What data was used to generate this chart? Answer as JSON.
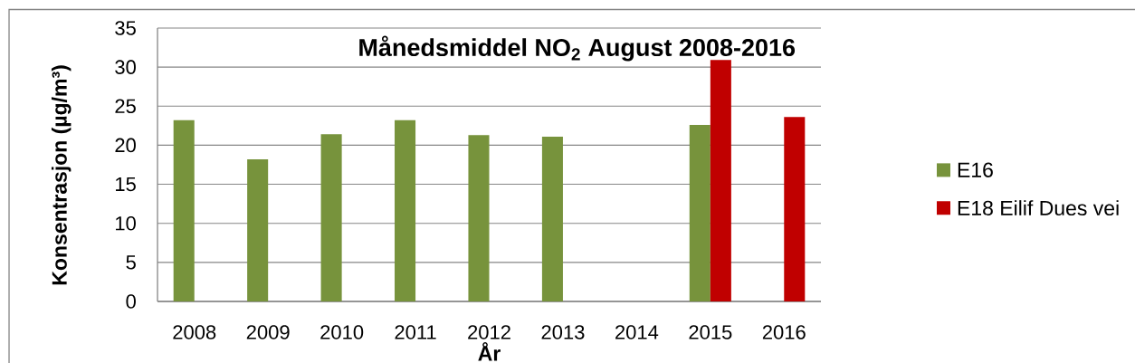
{
  "chart_data": {
    "type": "bar",
    "title": "Månedsmiddel NO$_{2}$ August 2008-2016",
    "xlabel": "År",
    "ylabel": "Konsentrasjon (µg/m³)",
    "categories": [
      "2008",
      "2009",
      "2010",
      "2011",
      "2012",
      "2013",
      "2014",
      "2015",
      "2016"
    ],
    "series": [
      {
        "name": "E16",
        "color": "#77933c",
        "values": [
          23.2,
          18.2,
          21.4,
          23.2,
          21.3,
          21.1,
          null,
          22.6,
          null
        ]
      },
      {
        "name": "E18 Eilif Dues vei",
        "color": "#c00000",
        "values": [
          null,
          null,
          null,
          null,
          null,
          null,
          null,
          30.9,
          23.6
        ]
      }
    ],
    "ylim": [
      0,
      35
    ],
    "yticks": [
      0,
      5,
      10,
      15,
      20,
      25,
      30,
      35
    ],
    "grid": "y",
    "legend": "right"
  }
}
